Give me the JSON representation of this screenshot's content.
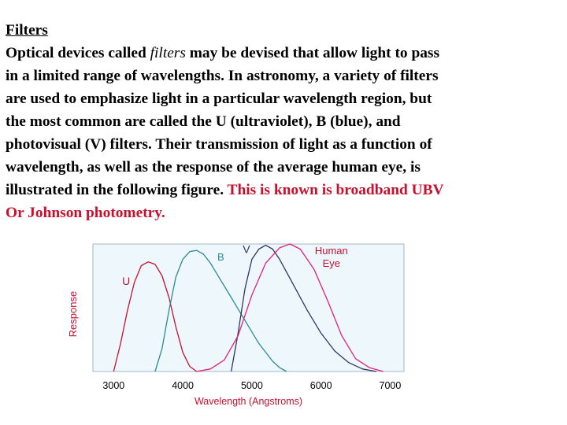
{
  "document": {
    "heading": "Filters",
    "paragraph": {
      "line1_before": "Optical devices called ",
      "line1_emphasis": "filters",
      "line1_after": " may be devised that allow light to pass",
      "line2": "in a limited range of wavelengths. In astronomy, a variety of filters",
      "line3": "are used to emphasize light in a particular wavelength region, but",
      "line4": "the most common are called the U (ultraviolet), B (blue), and",
      "line5": "photovisual (V) filters. Their transmission of light as a function of",
      "line6": "wavelength, as well as the response of the average human eye, is",
      "line7_before": "illustrated in the following figure. ",
      "line7_highlight": "This is known is broadband UBV",
      "line8_highlight": "Or Johnson photometry."
    },
    "highlight_color": "#c8102e"
  },
  "chart_data": {
    "type": "line",
    "xlabel": "Wavelength (Angstroms)",
    "ylabel": "Response",
    "xlim": [
      2700,
      7200
    ],
    "ylim": [
      0,
      1.0
    ],
    "x_ticks": [
      "3000",
      "4000",
      "5000",
      "6000",
      "7000"
    ],
    "x_tick_values": [
      3000,
      4000,
      5000,
      6000,
      7000
    ],
    "background": "#eef7fb",
    "series": [
      {
        "name": "U",
        "color": "#c8102e",
        "x": [
          3000,
          3100,
          3200,
          3300,
          3400,
          3500,
          3600,
          3700,
          3800,
          3900,
          4000,
          4100,
          4200
        ],
        "y": [
          0,
          0.22,
          0.48,
          0.7,
          0.83,
          0.86,
          0.84,
          0.75,
          0.58,
          0.35,
          0.15,
          0.04,
          0
        ]
      },
      {
        "name": "B",
        "color": "#2a8a99",
        "x": [
          3600,
          3700,
          3800,
          3900,
          4000,
          4100,
          4200,
          4300,
          4400,
          4500,
          4700,
          4900,
          5100,
          5300,
          5400,
          5500
        ],
        "y": [
          0,
          0.18,
          0.48,
          0.74,
          0.88,
          0.94,
          0.95,
          0.92,
          0.85,
          0.76,
          0.58,
          0.4,
          0.22,
          0.08,
          0.03,
          0
        ]
      },
      {
        "name": "V",
        "color": "#333366",
        "x": [
          4700,
          4800,
          4900,
          5000,
          5100,
          5200,
          5300,
          5400,
          5500,
          5600,
          5800,
          6000,
          6200,
          6400,
          6600,
          6800
        ],
        "y": [
          0,
          0.3,
          0.65,
          0.88,
          0.96,
          0.99,
          0.96,
          0.88,
          0.78,
          0.68,
          0.48,
          0.3,
          0.16,
          0.07,
          0.02,
          0
        ]
      },
      {
        "name": "Human Eye",
        "color": "#e0207a",
        "x": [
          4200,
          4400,
          4600,
          4800,
          5000,
          5200,
          5400,
          5550,
          5700,
          5900,
          6100,
          6300,
          6500,
          6700,
          6900
        ],
        "y": [
          0,
          0.02,
          0.09,
          0.28,
          0.6,
          0.85,
          0.97,
          1.0,
          0.96,
          0.8,
          0.55,
          0.28,
          0.1,
          0.03,
          0
        ]
      }
    ],
    "annotations": [
      {
        "text": "U",
        "color": "#c8102e"
      },
      {
        "text": "B",
        "color": "#2a8a99"
      },
      {
        "text": "V",
        "color": "#333366"
      },
      {
        "text": "Human",
        "color": "#c8102e"
      },
      {
        "text": "Eye",
        "color": "#c8102e"
      }
    ],
    "axis_label_color": "#c8102e",
    "tick_color": "#000000"
  }
}
